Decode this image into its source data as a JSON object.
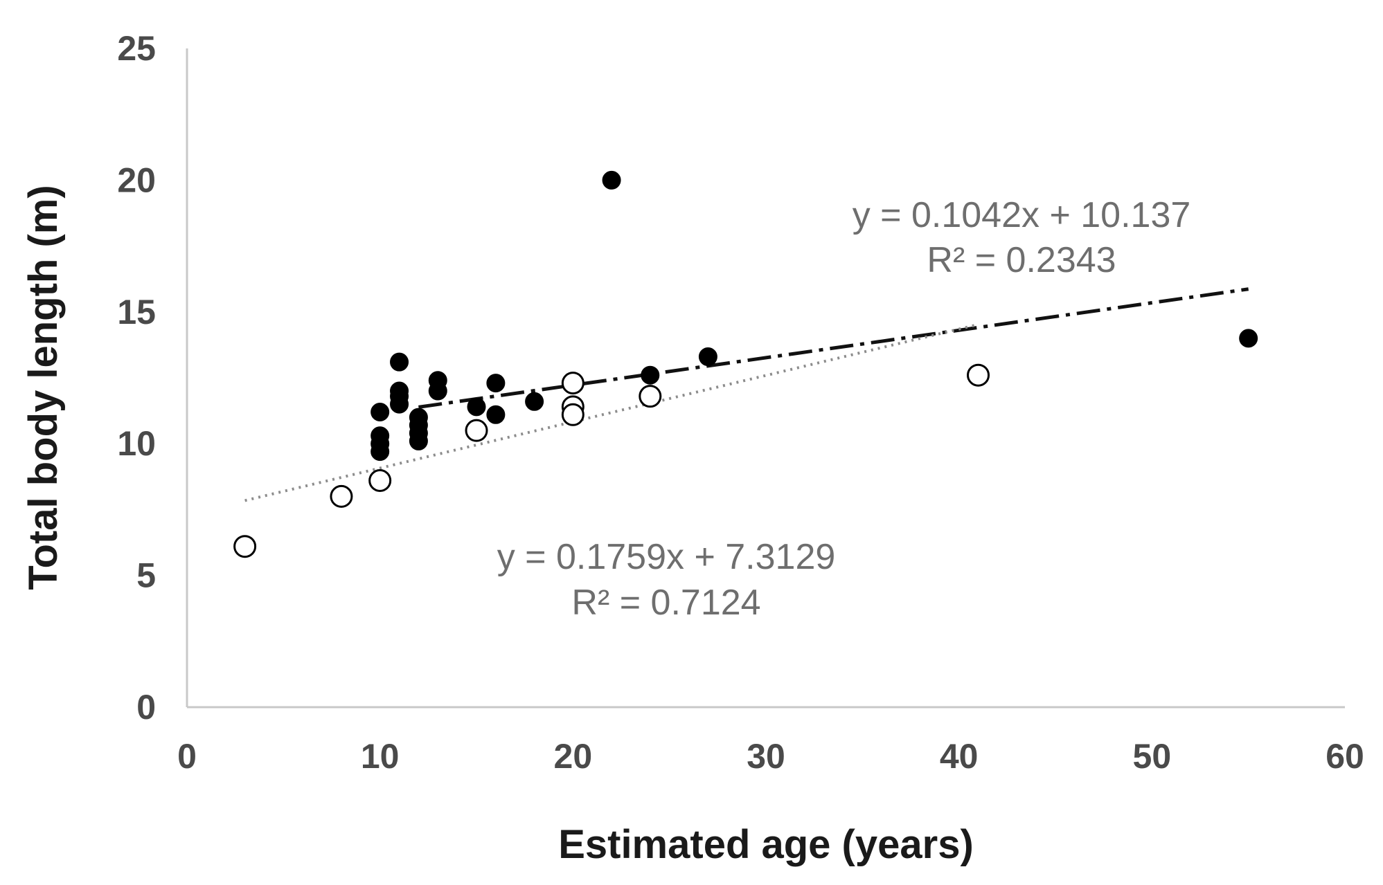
{
  "chart_data": {
    "type": "scatter",
    "xlabel": "Estimated age (years)",
    "ylabel": "Total body length (m)",
    "xlim": [
      0,
      60
    ],
    "ylim": [
      0,
      25
    ],
    "x_ticks": [
      0,
      10,
      20,
      30,
      40,
      50,
      60
    ],
    "y_ticks": [
      0,
      5,
      10,
      15,
      20,
      25
    ],
    "grid": false,
    "series": [
      {
        "name": "filled",
        "marker": "filled-circle",
        "color": "#000000",
        "points": [
          [
            10,
            11.2
          ],
          [
            10,
            10.3
          ],
          [
            10,
            10.0
          ],
          [
            10,
            9.7
          ],
          [
            11,
            13.1
          ],
          [
            11,
            12.0
          ],
          [
            11,
            11.8
          ],
          [
            11,
            11.5
          ],
          [
            12,
            11.0
          ],
          [
            12,
            10.7
          ],
          [
            12,
            10.4
          ],
          [
            12,
            10.1
          ],
          [
            13,
            12.4
          ],
          [
            13,
            12.0
          ],
          [
            15,
            11.4
          ],
          [
            16,
            12.3
          ],
          [
            16,
            11.1
          ],
          [
            18,
            11.6
          ],
          [
            22,
            20.0
          ],
          [
            24,
            12.6
          ],
          [
            27,
            13.3
          ],
          [
            55,
            14.0
          ]
        ],
        "trendline": {
          "style": "dash-dot",
          "slope": 0.1042,
          "intercept": 10.137,
          "x_range": [
            12,
            55
          ],
          "equation": "y = 0.1042x  + 10.137",
          "r2": "R² = 0.2343"
        }
      },
      {
        "name": "open",
        "marker": "open-circle",
        "color": "#000000",
        "points": [
          [
            3,
            6.1
          ],
          [
            8,
            8.0
          ],
          [
            10,
            8.6
          ],
          [
            15,
            10.5
          ],
          [
            20,
            12.3
          ],
          [
            20,
            11.4
          ],
          [
            20,
            11.1
          ],
          [
            24,
            11.8
          ],
          [
            41,
            12.6
          ]
        ],
        "trendline": {
          "style": "dotted",
          "slope": 0.1759,
          "intercept": 7.3129,
          "x_range": [
            3,
            41
          ],
          "equation": "y = 0.1759x  + 7.3129",
          "r2": "R² = 0.7124"
        }
      }
    ]
  }
}
